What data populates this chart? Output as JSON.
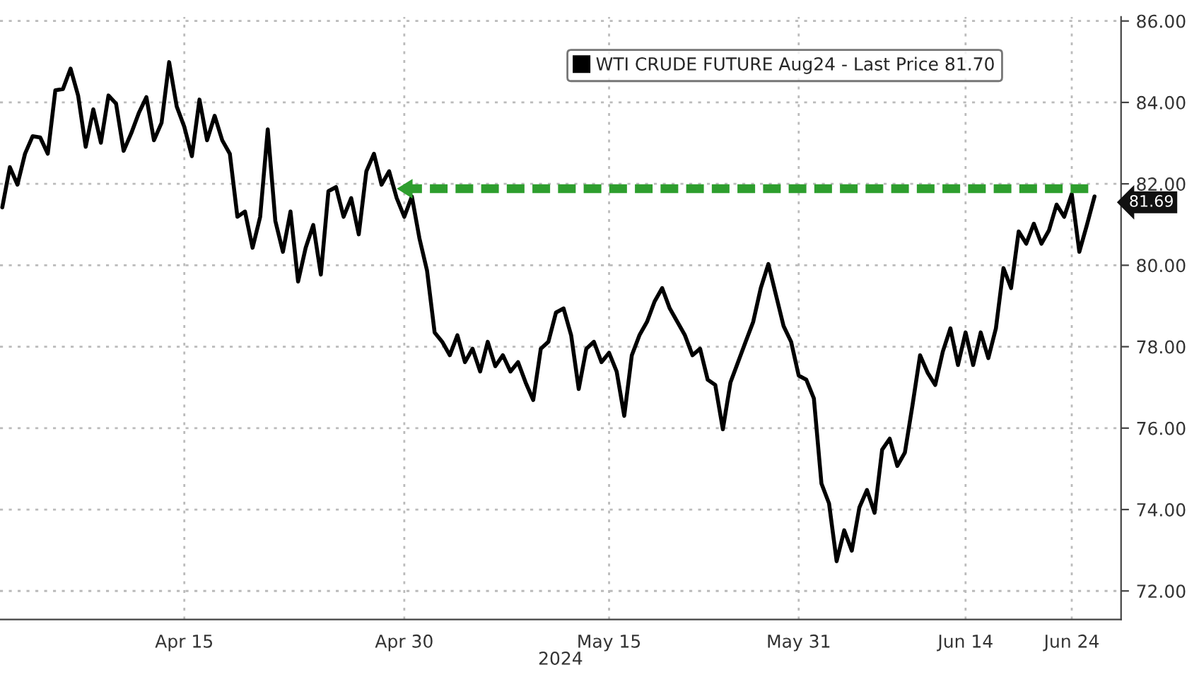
{
  "chart_data": {
    "type": "line",
    "xlabel": "2024",
    "categories": [
      null,
      null,
      null,
      null,
      null,
      null,
      null,
      null,
      null,
      null,
      null,
      null,
      null,
      null,
      null,
      null,
      null,
      null,
      null,
      null,
      null,
      null,
      null,
      null,
      "Apr 15",
      null,
      null,
      null,
      null,
      null,
      null,
      null,
      null,
      null,
      null,
      null,
      null,
      null,
      null,
      null,
      null,
      null,
      null,
      null,
      null,
      null,
      null,
      null,
      null,
      null,
      null,
      null,
      null,
      "Apr 30",
      null,
      null,
      null,
      null,
      null,
      null,
      null,
      null,
      null,
      null,
      null,
      null,
      null,
      null,
      null,
      null,
      null,
      null,
      null,
      null,
      null,
      null,
      null,
      null,
      null,
      null,
      "May 15",
      null,
      null,
      null,
      null,
      null,
      null,
      null,
      null,
      null,
      null,
      null,
      null,
      null,
      null,
      null,
      null,
      null,
      null,
      null,
      null,
      null,
      null,
      null,
      null,
      "May 31",
      null,
      null,
      null,
      null,
      null,
      null,
      null,
      null,
      null,
      null,
      null,
      null,
      null,
      null,
      null,
      null,
      null,
      null,
      null,
      null,
      null,
      "Jun 14",
      null,
      null,
      null,
      null,
      null,
      null,
      null,
      null,
      null,
      null,
      null,
      null,
      null,
      "Jun 24",
      null,
      null,
      null
    ],
    "series": [
      {
        "name": "WTI CRUDE FUTURE Aug24 - Last Price 81.70",
        "color": "#000000",
        "values": [
          81.42,
          82.41,
          81.98,
          82.74,
          83.17,
          83.14,
          82.74,
          84.3,
          84.33,
          84.83,
          84.17,
          82.91,
          83.83,
          83.01,
          84.17,
          83.97,
          82.81,
          83.24,
          83.74,
          84.13,
          83.07,
          83.5,
          84.99,
          83.9,
          83.4,
          82.68,
          84.07,
          83.07,
          83.67,
          83.07,
          82.74,
          81.19,
          81.32,
          80.43,
          81.19,
          83.34,
          81.09,
          80.33,
          81.32,
          79.6,
          80.43,
          80.99,
          79.77,
          81.82,
          81.92,
          81.19,
          81.65,
          80.76,
          82.31,
          82.74,
          81.98,
          82.31,
          81.65,
          81.19,
          81.69,
          80.66,
          79.87,
          78.35,
          78.12,
          77.79,
          78.28,
          77.62,
          77.95,
          77.39,
          78.12,
          77.52,
          77.79,
          77.39,
          77.62,
          77.12,
          76.69,
          77.95,
          78.12,
          78.84,
          78.94,
          78.28,
          76.96,
          77.95,
          78.12,
          77.62,
          77.85,
          77.39,
          76.3,
          77.79,
          78.28,
          78.61,
          79.11,
          79.44,
          78.94,
          78.61,
          78.28,
          77.79,
          77.95,
          77.19,
          77.06,
          75.97,
          77.12,
          77.62,
          78.12,
          78.61,
          79.44,
          80.03,
          79.27,
          78.51,
          78.12,
          77.29,
          77.19,
          76.73,
          74.64,
          74.15,
          72.73,
          73.49,
          72.99,
          74.05,
          74.48,
          73.92,
          75.47,
          75.74,
          75.07,
          75.4,
          76.56,
          77.79,
          77.36,
          77.06,
          77.88,
          78.45,
          77.55,
          78.35,
          77.55,
          78.35,
          77.72,
          78.45,
          79.93,
          79.44,
          80.83,
          80.53,
          81.02,
          80.53,
          80.86,
          81.49,
          81.19,
          81.75,
          80.33,
          80.99,
          81.69
        ]
      },
      {
        "type": "line",
        "color": "#2e9e2e",
        "line_style": "dashed",
        "values": [
          null,
          null,
          null,
          null,
          null,
          null,
          null,
          null,
          null,
          null,
          null,
          null,
          null,
          null,
          null,
          null,
          null,
          null,
          null,
          null,
          null,
          null,
          null,
          null,
          null,
          null,
          null,
          null,
          null,
          null,
          null,
          null,
          null,
          null,
          null,
          null,
          null,
          null,
          null,
          null,
          null,
          null,
          null,
          null,
          null,
          null,
          null,
          null,
          null,
          null,
          null,
          null,
          null,
          81.88,
          81.88,
          81.88,
          81.88,
          81.88,
          81.88,
          81.88,
          81.88,
          81.88,
          81.88,
          81.88,
          81.88,
          81.88,
          81.88,
          81.88,
          81.88,
          81.88,
          81.88,
          81.88,
          81.88,
          81.88,
          81.88,
          81.88,
          81.88,
          81.88,
          81.88,
          81.88,
          81.88,
          81.88,
          81.88,
          81.88,
          81.88,
          81.88,
          81.88,
          81.88,
          81.88,
          81.88,
          81.88,
          81.88,
          81.88,
          81.88,
          81.88,
          81.88,
          81.88,
          81.88,
          81.88,
          81.88,
          81.88,
          81.88,
          81.88,
          81.88,
          81.88,
          81.88,
          81.88,
          81.88,
          81.88,
          81.88,
          81.88,
          81.88,
          81.88,
          81.88,
          81.88,
          81.88,
          81.88,
          81.88,
          81.88,
          81.88,
          81.88,
          81.88,
          81.88,
          81.88,
          81.88,
          81.88,
          81.88,
          81.88,
          81.88,
          81.88,
          81.88,
          81.88,
          81.88,
          81.88,
          81.88,
          81.88,
          81.88,
          81.88,
          81.88,
          81.88,
          81.88,
          81.88,
          81.88,
          81.88,
          81.88
        ]
      }
    ],
    "ylim": [
      71.3,
      86.1
    ],
    "yticks": [
      {
        "value": 72,
        "label": "72.00"
      },
      {
        "value": 74,
        "label": "74.00"
      },
      {
        "value": 76,
        "label": "76.00"
      },
      {
        "value": 78,
        "label": "78.00"
      },
      {
        "value": 80,
        "label": "80.00"
      },
      {
        "value": 82,
        "label": "82.00"
      },
      {
        "value": 84,
        "label": "84.00"
      },
      {
        "value": 86,
        "label": "86.00"
      }
    ],
    "annotations": [
      "81.69"
    ],
    "grid": true,
    "legend": "top",
    "marker": "none",
    "line_style": "solid"
  }
}
